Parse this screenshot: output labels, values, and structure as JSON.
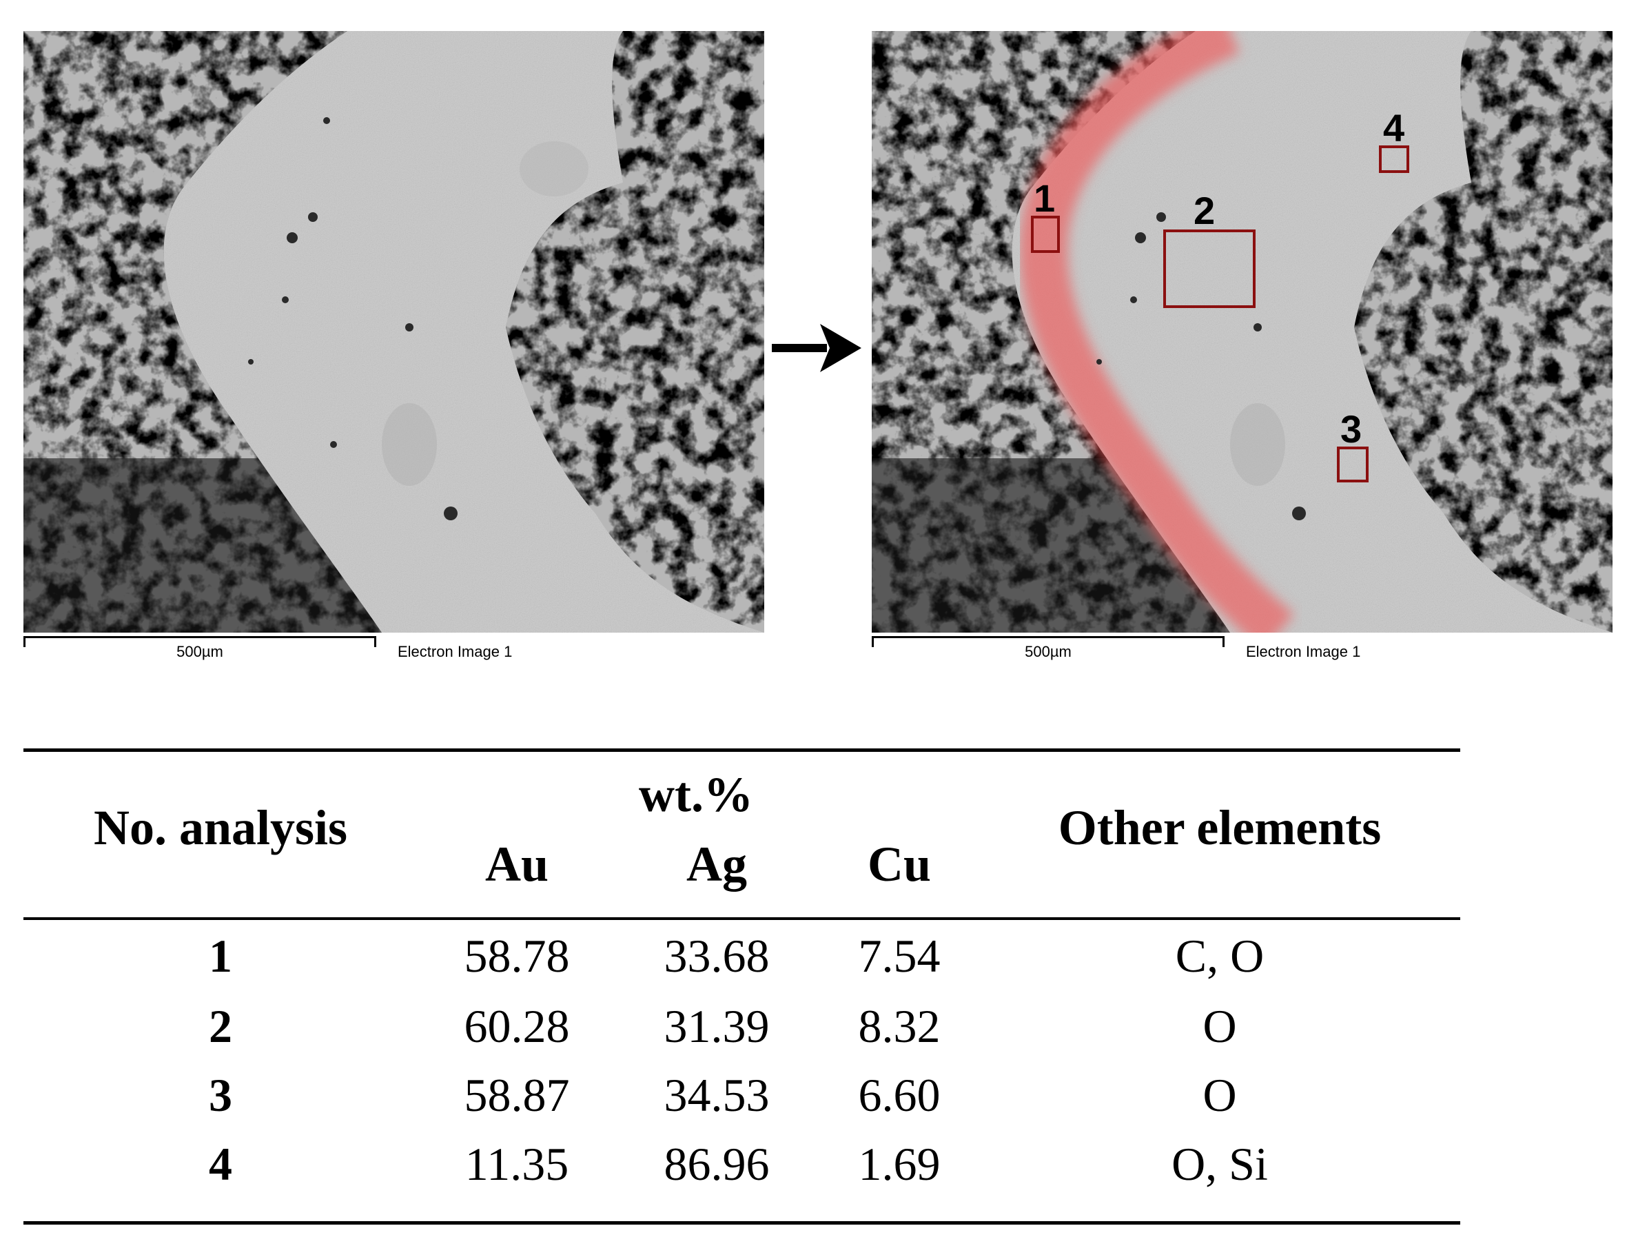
{
  "figure": {
    "left_image": {
      "scale_label": "500µm",
      "caption": "Electron Image 1"
    },
    "right_image": {
      "scale_label": "500µm",
      "caption": "Electron Image 1",
      "regions": [
        {
          "label": "1"
        },
        {
          "label": "2"
        },
        {
          "label": "3"
        },
        {
          "label": "4"
        }
      ]
    },
    "arrow_icon": "right-arrow-icon"
  },
  "table": {
    "header": {
      "col_analysis": "No. analysis",
      "group_label": "wt.%",
      "col_au": "Au",
      "col_ag": "Ag",
      "col_cu": "Cu",
      "col_other": "Other elements"
    },
    "rows": [
      {
        "no": "1",
        "au": "58.78",
        "ag": "33.68",
        "cu": "7.54",
        "other": "C, O"
      },
      {
        "no": "2",
        "au": "60.28",
        "ag": "31.39",
        "cu": "8.32",
        "other": "O"
      },
      {
        "no": "3",
        "au": "58.87",
        "ag": "34.53",
        "cu": "6.60",
        "other": "O"
      },
      {
        "no": "4",
        "au": "11.35",
        "ag": "86.96",
        "cu": "1.69",
        "other": "O, Si"
      }
    ]
  }
}
